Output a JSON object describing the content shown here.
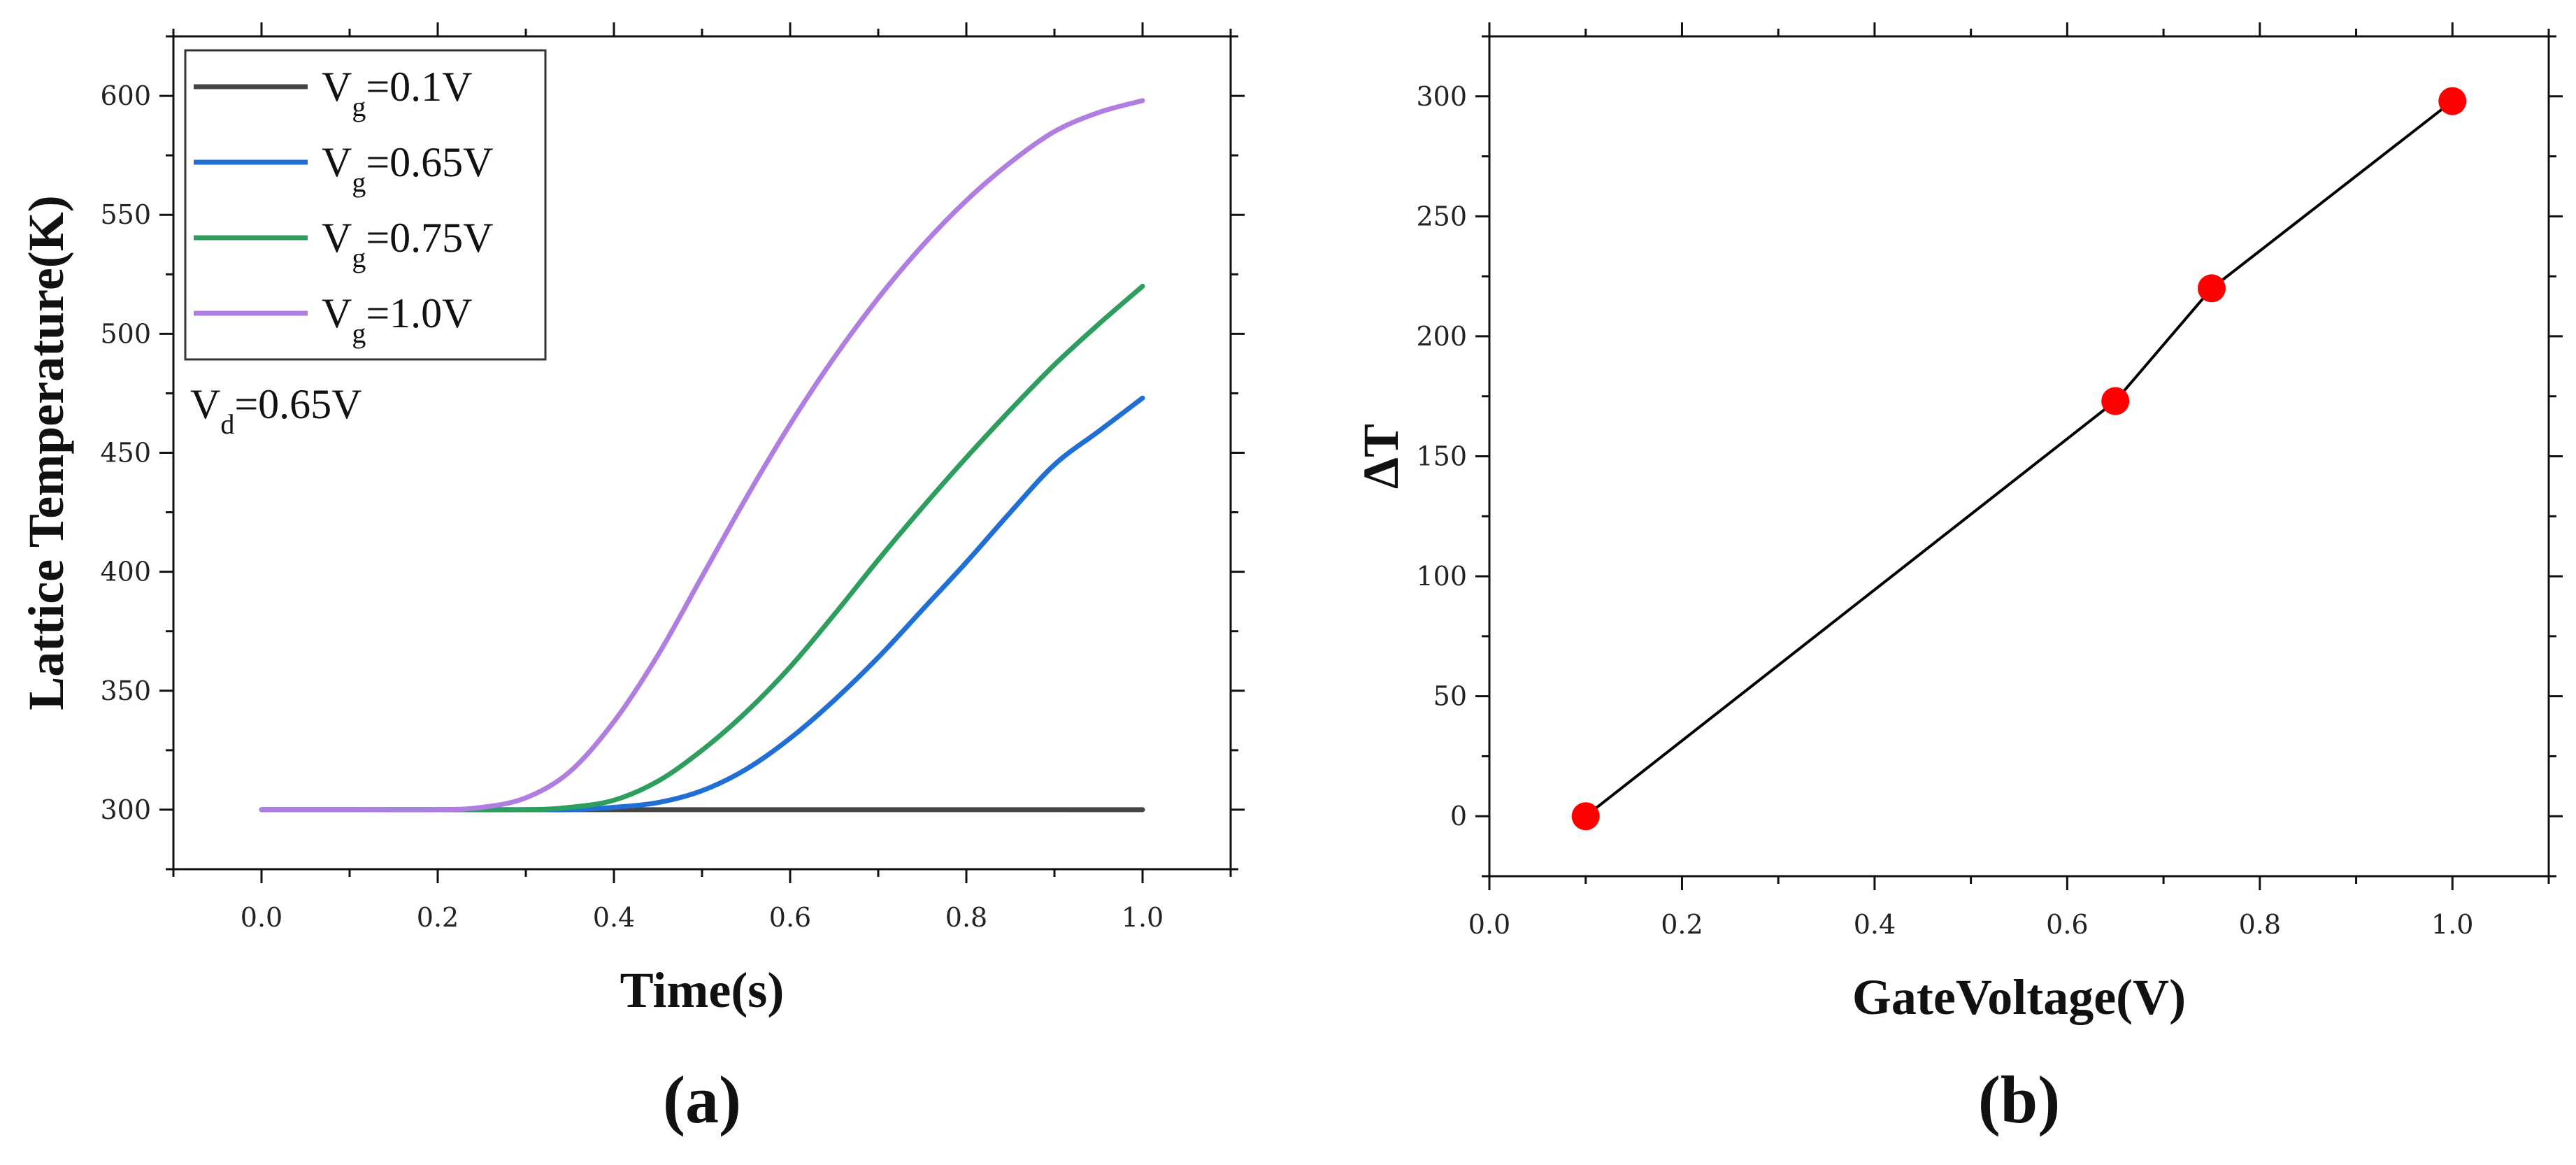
{
  "chart_data": [
    {
      "id": "a",
      "type": "line",
      "panel_label": "(a)",
      "title": "",
      "xlabel": "Time(s)",
      "ylabel": "Lattice Temperature(K)",
      "xlim": [
        -0.1,
        1.1
      ],
      "ylim": [
        275,
        625
      ],
      "xticks": [
        0.0,
        0.2,
        0.4,
        0.6,
        0.8,
        1.0
      ],
      "xtick_labels": [
        "0.0",
        "0.2",
        "0.4",
        "0.6",
        "0.8",
        "1.0"
      ],
      "yticks": [
        300,
        350,
        400,
        450,
        500,
        550,
        600
      ],
      "ytick_labels": [
        "300",
        "350",
        "400",
        "450",
        "500",
        "550",
        "600"
      ],
      "grid": false,
      "legend_position": "top-left",
      "series": [
        {
          "name": "Vg=0.1V",
          "label_main": "V",
          "label_sub": "g",
          "label_rest": "=0.1V",
          "color": "#444444",
          "x": [
            0,
            0.1,
            0.2,
            0.3,
            0.4,
            0.5,
            0.6,
            0.7,
            0.8,
            0.9,
            1.0
          ],
          "y": [
            300,
            300,
            300,
            300,
            300,
            300,
            300,
            300,
            300,
            300,
            300
          ]
        },
        {
          "name": "Vg=0.65V",
          "label_main": "V",
          "label_sub": "g",
          "label_rest": "=0.65V",
          "color": "#1f6fd6",
          "x": [
            0,
            0.1,
            0.2,
            0.3,
            0.35,
            0.4,
            0.45,
            0.5,
            0.55,
            0.6,
            0.65,
            0.7,
            0.75,
            0.8,
            0.85,
            0.9,
            0.95,
            1.0
          ],
          "y": [
            300,
            300,
            300,
            300,
            300,
            301,
            303,
            308,
            317,
            330,
            346,
            364,
            384,
            404,
            425,
            445,
            459,
            473
          ]
        },
        {
          "name": "Vg=0.75V",
          "label_main": "V",
          "label_sub": "g",
          "label_rest": "=0.75V",
          "color": "#2e9e5e",
          "x": [
            0,
            0.1,
            0.2,
            0.3,
            0.35,
            0.4,
            0.45,
            0.5,
            0.55,
            0.6,
            0.65,
            0.7,
            0.75,
            0.8,
            0.85,
            0.9,
            0.95,
            1.0
          ],
          "y": [
            300,
            300,
            300,
            300,
            301,
            304,
            312,
            325,
            341,
            360,
            382,
            405,
            427,
            448,
            468,
            487,
            504,
            520
          ]
        },
        {
          "name": "Vg=1.0V",
          "label_main": "V",
          "label_sub": "g",
          "label_rest": "=1.0V",
          "color": "#b07ee0",
          "x": [
            0,
            0.1,
            0.2,
            0.25,
            0.3,
            0.35,
            0.4,
            0.45,
            0.5,
            0.55,
            0.6,
            0.65,
            0.7,
            0.75,
            0.8,
            0.85,
            0.9,
            0.95,
            1.0
          ],
          "y": [
            300,
            300,
            300,
            301,
            305,
            316,
            337,
            365,
            398,
            431,
            462,
            490,
            515,
            537,
            556,
            572,
            585,
            593,
            598
          ]
        }
      ],
      "annotations": [
        {
          "main": "V",
          "sub": "d",
          "rest": "=0.65V"
        }
      ]
    },
    {
      "id": "b",
      "type": "scatter",
      "panel_label": "(b)",
      "title": "",
      "xlabel": "GateVoltage(V)",
      "ylabel": "ΔT",
      "xlim": [
        0.0,
        1.1
      ],
      "ylim": [
        -25,
        325
      ],
      "xticks": [
        0.0,
        0.2,
        0.4,
        0.6,
        0.8,
        1.0
      ],
      "xtick_labels": [
        "0.0",
        "0.2",
        "0.4",
        "0.6",
        "0.8",
        "1.0"
      ],
      "yticks": [
        0,
        50,
        100,
        150,
        200,
        250,
        300
      ],
      "ytick_labels": [
        "0",
        "50",
        "100",
        "150",
        "200",
        "250",
        "300"
      ],
      "grid": false,
      "series": [
        {
          "name": "ΔT",
          "line_color": "#000000",
          "marker_color": "#ff0000",
          "connected": true,
          "x": [
            0.1,
            0.65,
            0.75,
            1.0
          ],
          "y": [
            0,
            173,
            220,
            298
          ]
        }
      ]
    }
  ]
}
